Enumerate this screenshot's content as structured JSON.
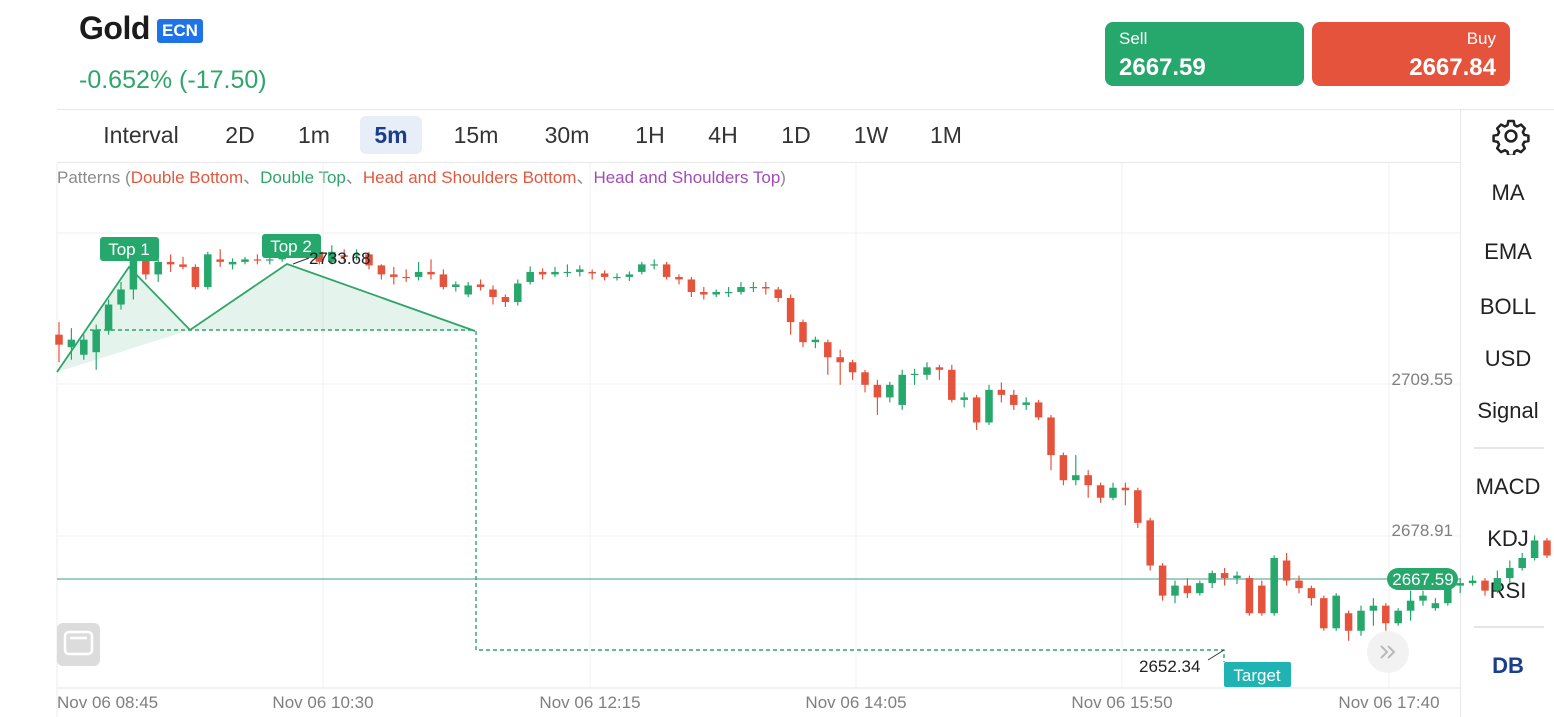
{
  "header": {
    "title": "Gold",
    "badge": "ECN",
    "change": "-0.652% (-17.50)"
  },
  "trade": {
    "sell_label": "Sell",
    "sell_price": "2667.59",
    "buy_label": "Buy",
    "buy_price": "2667.84"
  },
  "toolbar": {
    "intervals": [
      "Interval",
      "2D",
      "1m",
      "5m",
      "15m",
      "30m",
      "1H",
      "4H",
      "1D",
      "1W",
      "1M"
    ],
    "active_interval": "5m",
    "settings_icon": "gear-icon"
  },
  "sidebar": {
    "items": [
      "MA",
      "EMA",
      "BOLL",
      "USD",
      "Signal",
      "MACD",
      "KDJ",
      "RSI",
      "DB"
    ]
  },
  "patterns": {
    "prefix": "Patterns (",
    "items": [
      {
        "label": "Double Bottom",
        "color": "#e0583f"
      },
      {
        "label": "Double Top",
        "color": "#2fa56b"
      },
      {
        "label": "Head and Shoulders Bottom",
        "color": "#e0583f"
      },
      {
        "label": "Head and Shoulders Top",
        "color": "#a24cb8"
      }
    ],
    "separator": "、",
    "suffix": ")"
  },
  "chart_data": {
    "type": "candlestick",
    "x_labels": [
      "Nov 06 08:45",
      "Nov 06 10:30",
      "Nov 06 12:15",
      "Nov 06 14:05",
      "Nov 06 15:50",
      "Nov 06 17:40"
    ],
    "y_labels": [
      "2709.55",
      "2678.91"
    ],
    "current_price": "2667.59",
    "annotations": {
      "top1": "Top 1",
      "top2": "Top 2",
      "top_price": "2733.68",
      "target_price": "2652.34",
      "target": "Target"
    },
    "ylim": [
      2643.6,
      2748.2
    ],
    "colors": {
      "up": "#26a76c",
      "down": "#e5533c",
      "pattern": "#2fa56b",
      "target_badge": "#1fb3b3"
    },
    "candles": [
      [
        2714,
        2712,
        2716.5,
        2708.5
      ],
      [
        2711.5,
        2713,
        2715.3,
        2709
      ],
      [
        2710,
        2713,
        2714,
        2709
      ],
      [
        2710.5,
        2715,
        2716,
        2707
      ],
      [
        2714.8,
        2720,
        2721,
        2714
      ],
      [
        2720,
        2723,
        2724.5,
        2719
      ],
      [
        2723,
        2731,
        2732,
        2721
      ],
      [
        2731,
        2726,
        2731.5,
        2725
      ],
      [
        2726,
        2728.5,
        2729,
        2724.5
      ],
      [
        2728.5,
        2728,
        2730,
        2726.5
      ],
      [
        2728,
        2727.5,
        2729.5,
        2727
      ],
      [
        2727.5,
        2723.5,
        2728,
        2723
      ],
      [
        2723.5,
        2730,
        2730.5,
        2723
      ],
      [
        2729,
        2728.5,
        2731,
        2727.5
      ],
      [
        2728,
        2728.5,
        2729.2,
        2727
      ],
      [
        2728.5,
        2729,
        2729.5,
        2728
      ],
      [
        2729,
        2728.8,
        2730,
        2728
      ],
      [
        2728.8,
        2729,
        2730.5,
        2728
      ],
      [
        2729,
        2731,
        2733.8,
        2728.5
      ],
      [
        2731.5,
        2731,
        2733,
        2729.5
      ],
      [
        2731,
        2730,
        2731.5,
        2729
      ],
      [
        2730.5,
        2728.5,
        2731.2,
        2728
      ],
      [
        2728.5,
        2730.5,
        2731.8,
        2728
      ],
      [
        2729.8,
        2729.5,
        2731,
        2728.5
      ],
      [
        2729.8,
        2730,
        2731,
        2728.8
      ],
      [
        2730,
        2727.8,
        2730.5,
        2727
      ],
      [
        2727.8,
        2726,
        2728,
        2725
      ],
      [
        2726,
        2725.5,
        2727.5,
        2724
      ],
      [
        2725.5,
        2725.3,
        2727,
        2724.5
      ],
      [
        2725.5,
        2726.5,
        2728.5,
        2724.8
      ],
      [
        2726.5,
        2726,
        2729,
        2725
      ],
      [
        2726,
        2723.5,
        2727,
        2723
      ],
      [
        2723.5,
        2724,
        2724.6,
        2722.6
      ],
      [
        2722,
        2723.8,
        2724.5,
        2721.5
      ],
      [
        2724,
        2723.5,
        2725,
        2722.8
      ],
      [
        2723,
        2721.5,
        2723.8,
        2720
      ],
      [
        2721.5,
        2720.5,
        2722,
        2719.5
      ],
      [
        2720.5,
        2724.2,
        2725,
        2719.8
      ],
      [
        2724.5,
        2726.5,
        2727.6,
        2724
      ],
      [
        2726.5,
        2726,
        2727.2,
        2725
      ],
      [
        2726,
        2726.5,
        2727.5,
        2725.5
      ],
      [
        2726.5,
        2726.5,
        2728,
        2725.5
      ],
      [
        2726.5,
        2727,
        2727.8,
        2725.6
      ],
      [
        2726.5,
        2726.2,
        2727,
        2725
      ],
      [
        2726.2,
        2725.5,
        2726.8,
        2724.8
      ],
      [
        2725.5,
        2725.5,
        2726.2,
        2724.8
      ],
      [
        2725.5,
        2726,
        2726.6,
        2724.7
      ],
      [
        2726.5,
        2728,
        2728.5,
        2726
      ],
      [
        2728,
        2728,
        2729,
        2727
      ],
      [
        2728,
        2725.5,
        2728.5,
        2725
      ],
      [
        2725.5,
        2725,
        2726,
        2724
      ],
      [
        2725,
        2722.5,
        2725.5,
        2721.5
      ],
      [
        2722.5,
        2722,
        2723.5,
        2721
      ],
      [
        2722,
        2722.5,
        2723,
        2721.5
      ],
      [
        2722.5,
        2722.5,
        2723.5,
        2721.5
      ],
      [
        2722.5,
        2723.5,
        2724.5,
        2722
      ],
      [
        2723.5,
        2723.5,
        2724.5,
        2722.5
      ],
      [
        2723.5,
        2723.2,
        2724.5,
        2722
      ],
      [
        2723,
        2721.3,
        2723.5,
        2720.5
      ],
      [
        2721.3,
        2716.5,
        2722,
        2714
      ],
      [
        2716.5,
        2712.5,
        2717,
        2711.5
      ],
      [
        2712.5,
        2713,
        2713.6,
        2711.3
      ],
      [
        2712.5,
        2709.5,
        2713,
        2706
      ],
      [
        2709.5,
        2708.5,
        2711,
        2704
      ],
      [
        2708.5,
        2706.5,
        2709,
        2705
      ],
      [
        2706.5,
        2704,
        2707,
        2702.5
      ],
      [
        2704,
        2701.5,
        2705,
        2698
      ],
      [
        2701.5,
        2704,
        2704.6,
        2700.5
      ],
      [
        2700,
        2706,
        2707,
        2699
      ],
      [
        2706,
        2706.2,
        2707.2,
        2704
      ],
      [
        2706,
        2707.5,
        2708.5,
        2705
      ],
      [
        2707.5,
        2707,
        2708,
        2705
      ],
      [
        2707,
        2701,
        2708,
        2700.5
      ],
      [
        2701,
        2701.5,
        2702.5,
        2699.5
      ],
      [
        2701.5,
        2696.5,
        2702,
        2695
      ],
      [
        2696.5,
        2703,
        2704,
        2696
      ],
      [
        2703,
        2702,
        2704.5,
        2700.5
      ],
      [
        2702,
        2700,
        2703,
        2699
      ],
      [
        2700,
        2700.5,
        2701.5,
        2699
      ],
      [
        2700.5,
        2697.5,
        2701,
        2697
      ],
      [
        2697.5,
        2690,
        2698,
        2687
      ],
      [
        2690,
        2685,
        2690.5,
        2684
      ],
      [
        2685,
        2686,
        2690,
        2684
      ],
      [
        2686,
        2684,
        2687,
        2681.5
      ],
      [
        2684,
        2681.5,
        2684.5,
        2680.5
      ],
      [
        2681.5,
        2683.5,
        2684.5,
        2681
      ],
      [
        2683.5,
        2683,
        2684.5,
        2680
      ],
      [
        2683,
        2676.5,
        2683.5,
        2675.5
      ],
      [
        2677,
        2668,
        2677.5,
        2667
      ],
      [
        2668,
        2662,
        2668.5,
        2661
      ],
      [
        2662,
        2664,
        2665,
        2660.5
      ],
      [
        2664,
        2662.5,
        2665.5,
        2661.5
      ],
      [
        2662.5,
        2664.5,
        2665,
        2662
      ],
      [
        2664.5,
        2666.5,
        2667,
        2663.5
      ],
      [
        2666.5,
        2665.5,
        2667.5,
        2664
      ],
      [
        2665.5,
        2666,
        2666.8,
        2664.3
      ],
      [
        2665.5,
        2658.5,
        2666,
        2658
      ],
      [
        2664,
        2658.5,
        2665,
        2658
      ],
      [
        2658.5,
        2669.5,
        2670,
        2658
      ],
      [
        2669,
        2665,
        2670.5,
        2664
      ],
      [
        2665,
        2663.5,
        2666,
        2662.5
      ],
      [
        2663.5,
        2661.5,
        2664,
        2660
      ],
      [
        2661.5,
        2655.5,
        2662,
        2655
      ],
      [
        2655.5,
        2662,
        2662.5,
        2655
      ],
      [
        2658.5,
        2655,
        2659,
        2653
      ],
      [
        2655,
        2659,
        2660,
        2654
      ],
      [
        2659,
        2660,
        2661.5,
        2656
      ],
      [
        2660,
        2656.5,
        2660.5,
        2655
      ],
      [
        2656.5,
        2659,
        2659.5,
        2656
      ],
      [
        2659,
        2661,
        2663,
        2657
      ],
      [
        2661,
        2662,
        2663,
        2660
      ],
      [
        2659.5,
        2660.5,
        2661.5,
        2659
      ],
      [
        2660.5,
        2666,
        2666.5,
        2660
      ],
      [
        2664,
        2664.5,
        2665.5,
        2662.5
      ],
      [
        2664.5,
        2665,
        2666,
        2664
      ],
      [
        2665,
        2663,
        2665.5,
        2662
      ],
      [
        2663,
        2665.5,
        2667,
        2662.5
      ],
      [
        2665.5,
        2667.5,
        2669,
        2664.5
      ],
      [
        2667.5,
        2669.5,
        2670.5,
        2667
      ],
      [
        2669.5,
        2673,
        2674,
        2669
      ],
      [
        2673,
        2670,
        2673.5,
        2669.5
      ]
    ]
  }
}
